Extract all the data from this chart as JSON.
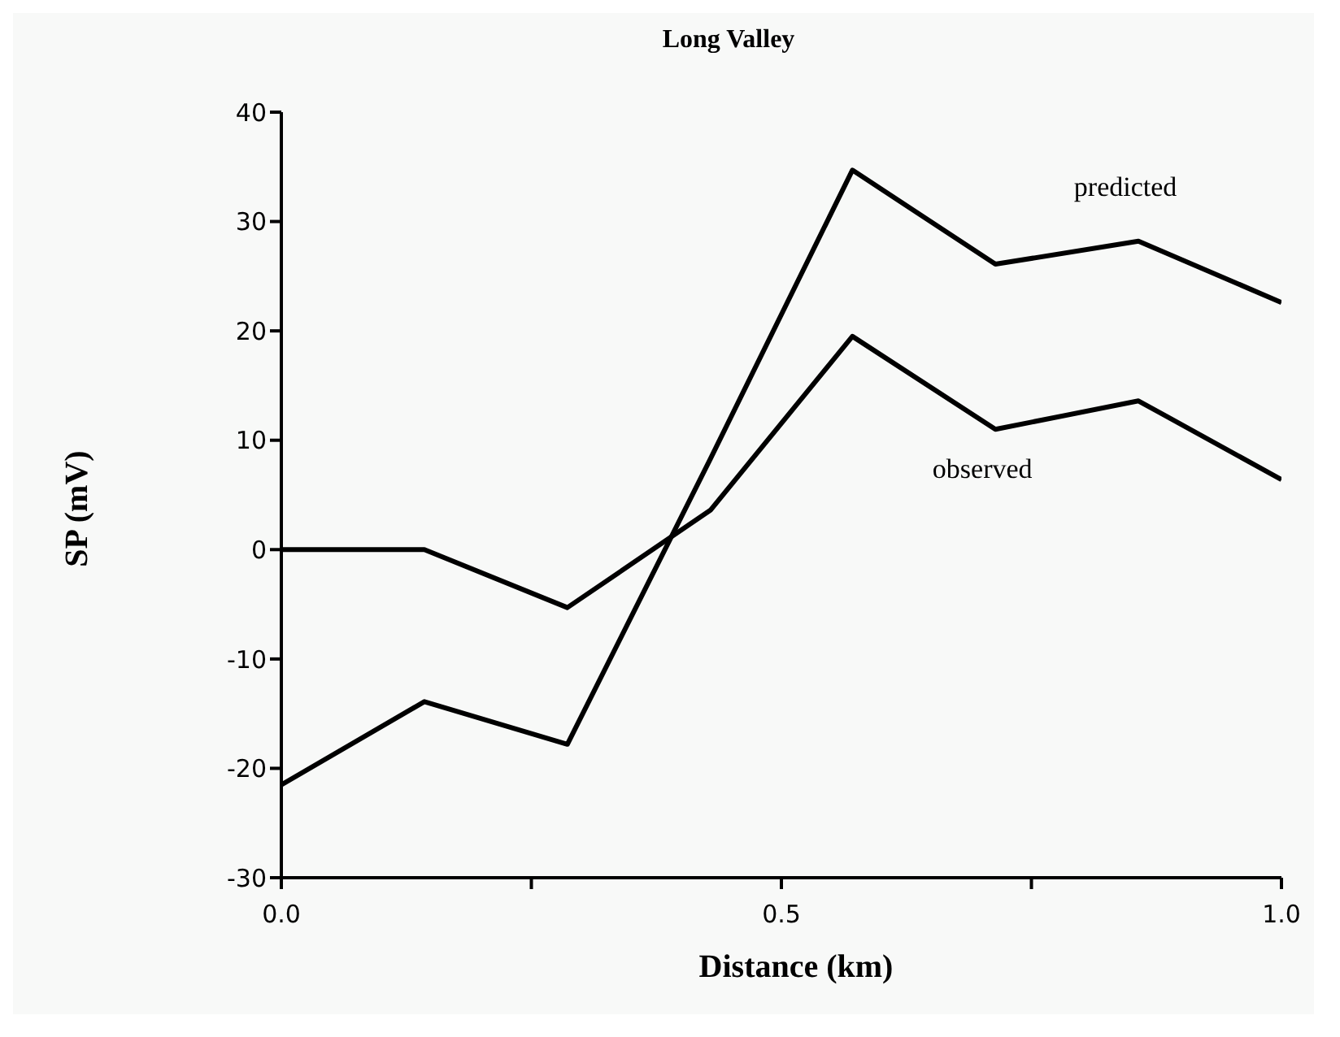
{
  "chart_data": {
    "type": "line",
    "title": "Long Valley",
    "xlabel": "Distance (km)",
    "ylabel": "SP (mV)",
    "x": [
      0,
      0.143,
      0.286,
      0.429,
      0.571,
      0.714,
      0.857,
      1.0
    ],
    "series": [
      {
        "name": "predicted",
        "color": "#000000",
        "values": [
          -21.5,
          -13.9,
          -17.8,
          8.3,
          34.7,
          26.1,
          28.2,
          22.6
        ]
      },
      {
        "name": "observed",
        "color": "#000000",
        "values": [
          0,
          0,
          -5.3,
          3.6,
          19.5,
          11,
          13.6,
          6.4
        ]
      }
    ],
    "xlim": [
      0,
      1
    ],
    "xticks": [
      {
        "value": 0,
        "label": "0.0"
      },
      {
        "value": 0.25,
        "label": null
      },
      0.5,
      {
        "value": 0.75,
        "label": null
      },
      {
        "value": 1,
        "label": "1.0"
      }
    ],
    "ylim": [
      -30,
      40
    ],
    "yticks": [
      -30,
      -20,
      -10,
      0,
      10,
      20,
      30,
      40
    ],
    "grid": false,
    "legend": false,
    "marker": "none",
    "line_style": "solid"
  }
}
